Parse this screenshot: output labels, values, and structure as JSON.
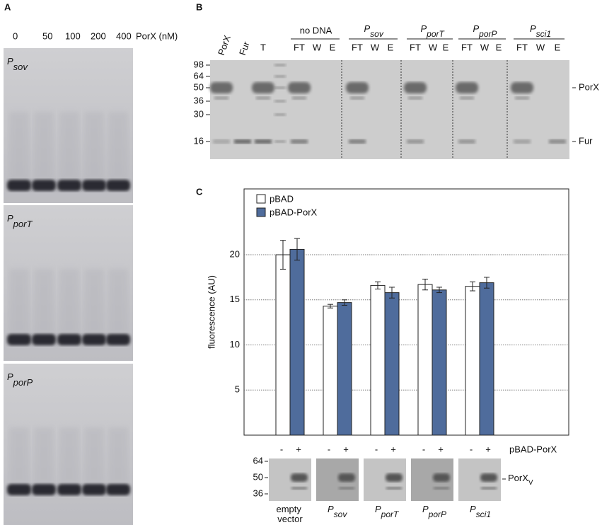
{
  "panel_a": {
    "label": "A",
    "concentrations": [
      "0",
      "50",
      "100",
      "200",
      "400"
    ],
    "unit_label": "PorX (nM)",
    "gels": [
      "Psov",
      "PporT",
      "PporP"
    ]
  },
  "panel_b": {
    "label": "B",
    "lanes": [
      "PorX",
      "Fur",
      "T"
    ],
    "groups": [
      "no DNA",
      "Psov",
      "PporT",
      "PporP",
      "Psci1"
    ],
    "fractions": [
      "FT",
      "W",
      "E"
    ],
    "markers": [
      "98",
      "64",
      "50",
      "36",
      "30",
      "16"
    ],
    "bands": [
      "PorX",
      "Fur"
    ]
  },
  "chart_data": {
    "type": "bar",
    "label": "C",
    "y_label": "fluorescence (AU)",
    "categories": [
      "empty vector",
      "Psov",
      "PporT",
      "PporP",
      "Psci1"
    ],
    "series": [
      {
        "name": "pBAD",
        "color": "#ffffff",
        "values": [
          20.0,
          14.3,
          16.6,
          16.7,
          16.5
        ],
        "errors": [
          1.6,
          0.2,
          0.4,
          0.6,
          0.5
        ]
      },
      {
        "name": "pBAD-PorX",
        "color": "#4f6c9c",
        "values": [
          20.6,
          14.7,
          15.8,
          16.1,
          16.9
        ],
        "errors": [
          1.2,
          0.3,
          0.6,
          0.3,
          0.6
        ]
      }
    ],
    "ylim": [
      0,
      27.3
    ],
    "yticks": [
      5,
      10,
      15,
      20
    ],
    "grid": true,
    "legend": "top-left",
    "signs": [
      "-",
      "+"
    ],
    "induction_label": "pBAD-PorX",
    "blot_markers": [
      "64",
      "50",
      "36"
    ],
    "blot_band": "PorXV"
  }
}
